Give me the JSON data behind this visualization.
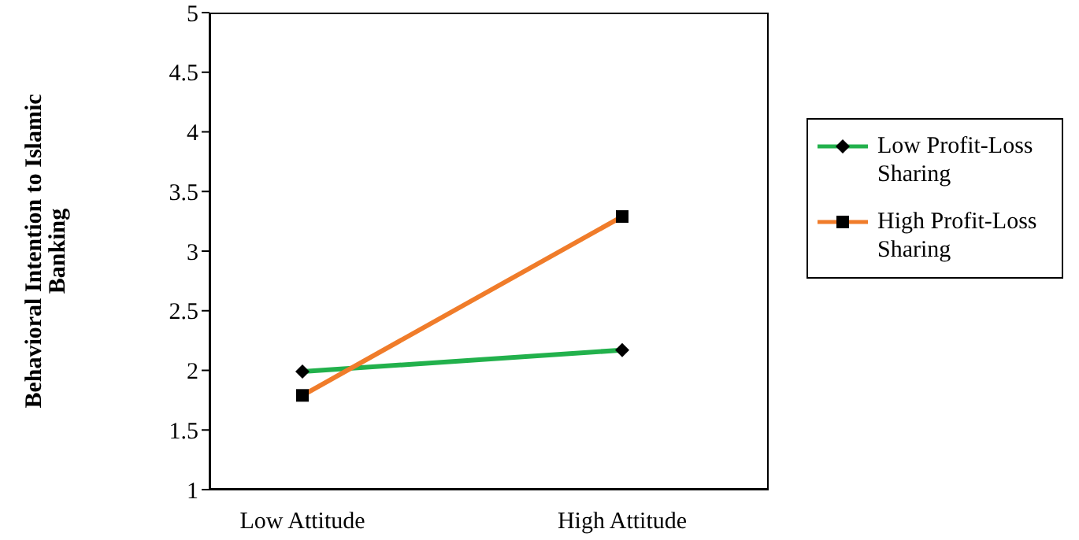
{
  "chart_data": {
    "type": "line",
    "ylabel": "Behavioral  Intention to Islamic Banking",
    "categories": [
      "Low Attitude",
      "High Attitude"
    ],
    "series": [
      {
        "name": "Low Profit-Loss Sharing",
        "color": "#22b14c",
        "values": [
          1.99,
          2.17
        ],
        "marker": "diamond"
      },
      {
        "name": "High Profit-Loss Sharing",
        "color": "#f07c2a",
        "values": [
          1.79,
          3.29
        ],
        "marker": "square"
      }
    ],
    "ylim": [
      1,
      5
    ],
    "yticks": [
      1,
      1.5,
      2,
      2.5,
      3,
      3.5,
      4,
      4.5,
      5
    ],
    "grid": false,
    "legend": "right",
    "line_style": "solid"
  }
}
